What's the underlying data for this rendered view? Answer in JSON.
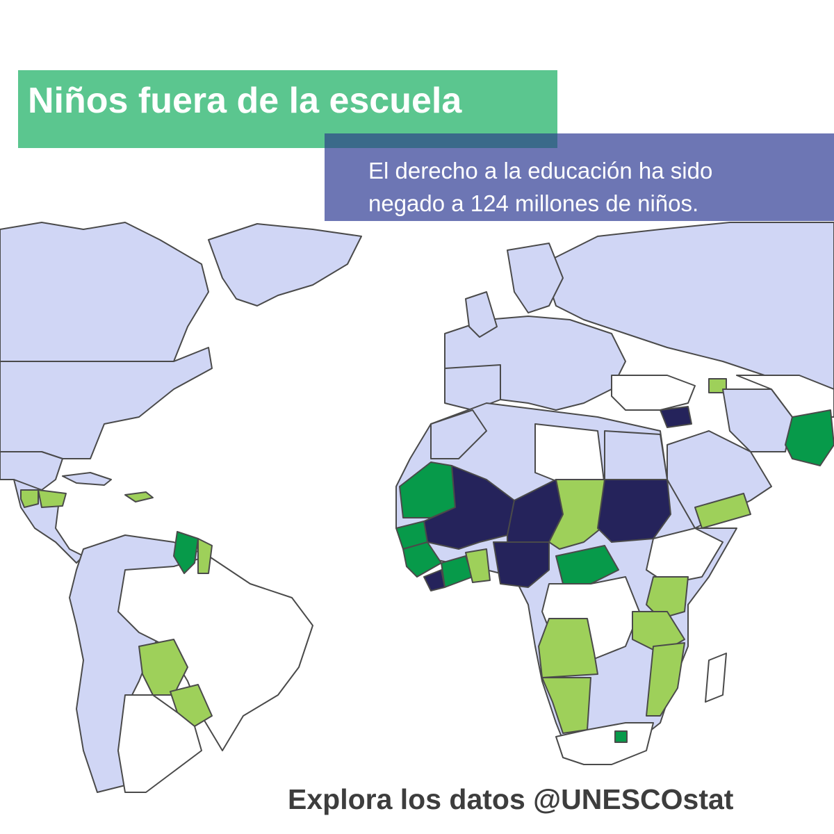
{
  "title": "Niños fuera de la escuela",
  "subtitle": {
    "line1": "El derecho a la educación ha sido",
    "line2": "negado a 124 millones de niños."
  },
  "footer": "Explora los datos @UNESCOstat",
  "colors": {
    "title_bg": "#5bc68f",
    "subtitle_bg": "#6d76b4",
    "high": "#25235b",
    "medium_high": "#079a4a",
    "medium": "#9ed05a",
    "low": "#d0d6f5",
    "no_data": "#ffffff",
    "border": "#4a4a4a"
  }
}
